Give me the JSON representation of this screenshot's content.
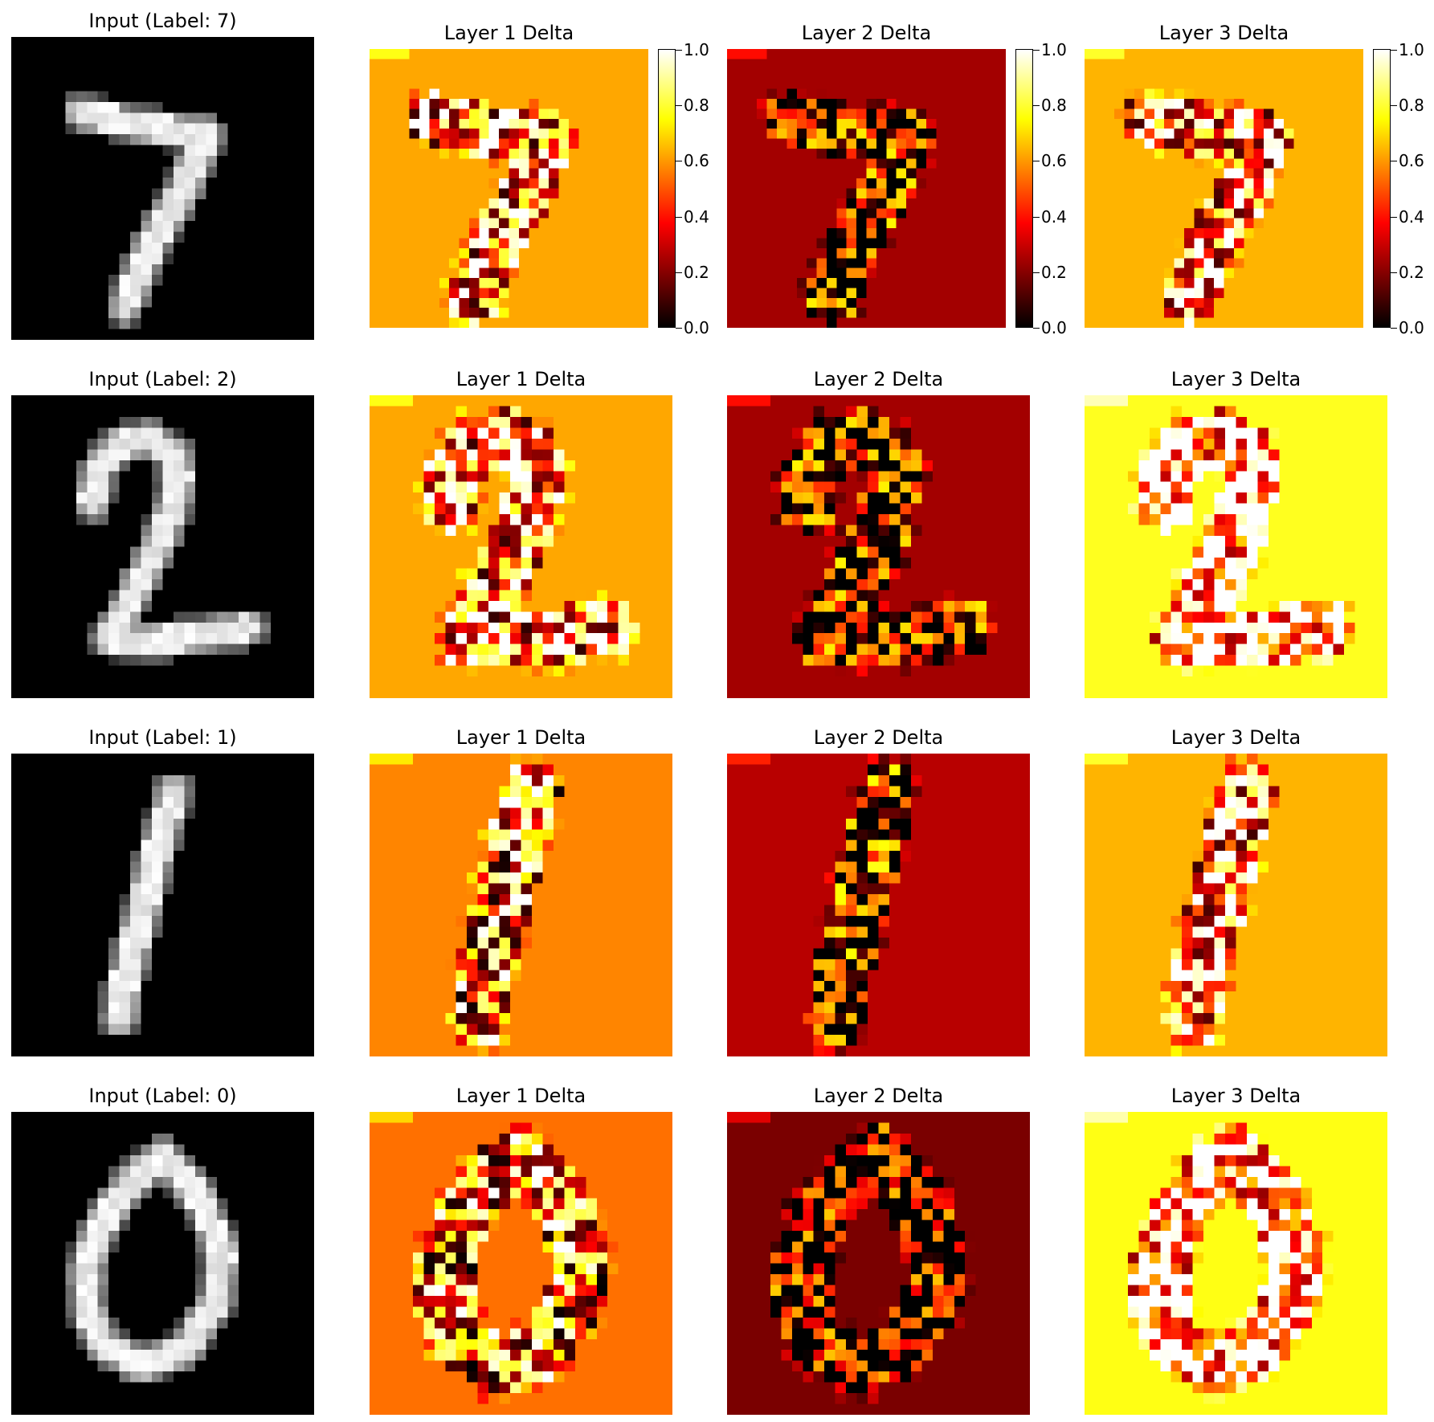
{
  "chart_data": {
    "type": "heatmap",
    "colormap": "hot",
    "grid": false,
    "image_size": [
      28,
      28
    ],
    "rows": [
      {
        "label": "7",
        "panels": [
          {
            "kind": "input",
            "title": "Input (Label: 7)"
          },
          {
            "kind": "delta",
            "title": "Layer 1 Delta",
            "background": 0.62
          },
          {
            "kind": "delta",
            "title": "Layer 2 Delta",
            "background": 0.24
          },
          {
            "kind": "delta",
            "title": "Layer 3 Delta",
            "background": 0.64
          }
        ]
      },
      {
        "label": "2",
        "panels": [
          {
            "kind": "input",
            "title": "Input (Label: 2)"
          },
          {
            "kind": "delta",
            "title": "Layer 1 Delta",
            "background": 0.62
          },
          {
            "kind": "delta",
            "title": "Layer 2 Delta",
            "background": 0.24
          },
          {
            "kind": "delta",
            "title": "Layer 3 Delta",
            "background": 0.78
          }
        ]
      },
      {
        "label": "1",
        "panels": [
          {
            "kind": "input",
            "title": "Input (Label: 1)"
          },
          {
            "kind": "delta",
            "title": "Layer 1 Delta",
            "background": 0.57
          },
          {
            "kind": "delta",
            "title": "Layer 2 Delta",
            "background": 0.27
          },
          {
            "kind": "delta",
            "title": "Layer 3 Delta",
            "background": 0.64
          }
        ]
      },
      {
        "label": "0",
        "panels": [
          {
            "kind": "input",
            "title": "Input (Label: 0)"
          },
          {
            "kind": "delta",
            "title": "Layer 1 Delta",
            "background": 0.54
          },
          {
            "kind": "delta",
            "title": "Layer 2 Delta",
            "background": 0.18
          },
          {
            "kind": "delta",
            "title": "Layer 3 Delta",
            "background": 0.77
          }
        ]
      }
    ],
    "colorbar": {
      "range": [
        0.0,
        1.0
      ],
      "ticks": [
        "0.0",
        "0.2",
        "0.4",
        "0.6",
        "0.8",
        "1.0"
      ]
    }
  }
}
